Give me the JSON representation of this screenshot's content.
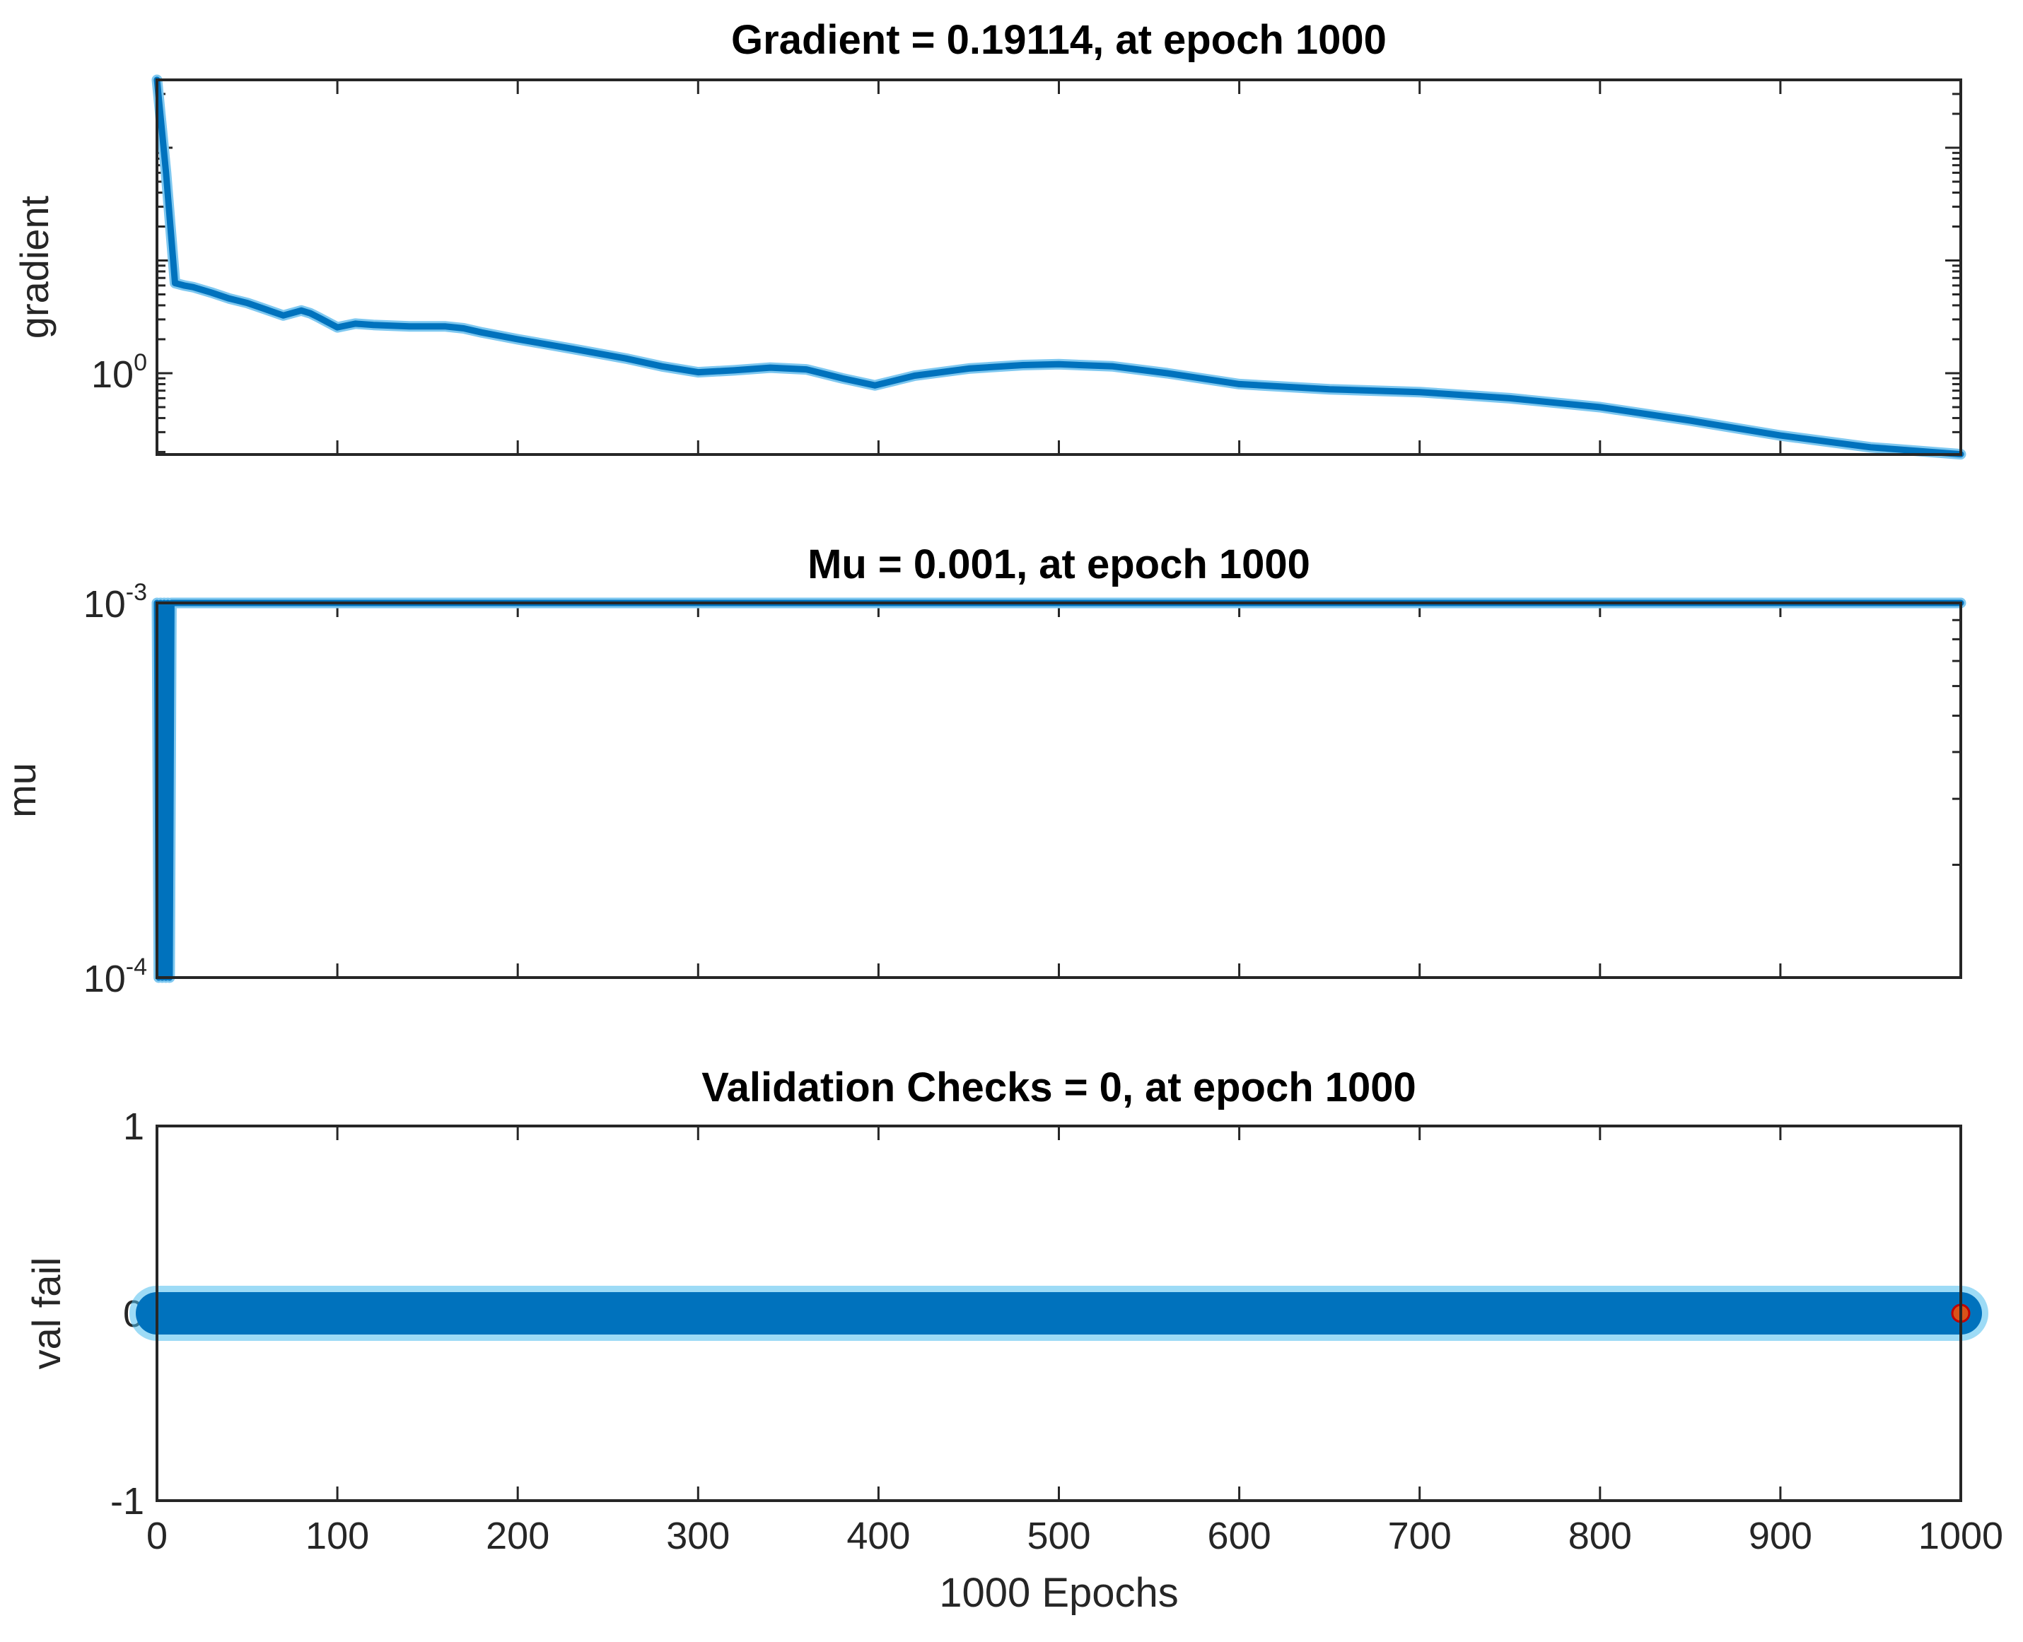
{
  "chart_data": [
    {
      "type": "line",
      "title": "Gradient = 0.19114, at epoch 1000",
      "xlabel": "",
      "ylabel": "gradient",
      "yscale": "log",
      "xlim": [
        0,
        1000
      ],
      "ylim": [
        0.19,
        400
      ],
      "yticks": [
        {
          "value": 1,
          "base": "10",
          "exp": "0"
        }
      ],
      "series": [
        {
          "name": "gradient",
          "color": "#0072BD",
          "x": [
            0,
            5,
            10,
            15,
            20,
            30,
            40,
            50,
            60,
            70,
            80,
            85,
            90,
            100,
            110,
            120,
            140,
            160,
            170,
            180,
            200,
            230,
            260,
            280,
            300,
            320,
            340,
            360,
            380,
            398,
            420,
            450,
            480,
            500,
            530,
            560,
            600,
            650,
            700,
            750,
            800,
            850,
            900,
            950,
            1000
          ],
          "y": [
            400,
            60,
            6.3,
            6.0,
            5.8,
            5.2,
            4.6,
            4.2,
            3.7,
            3.25,
            3.6,
            3.4,
            3.1,
            2.55,
            2.75,
            2.68,
            2.6,
            2.6,
            2.5,
            2.3,
            2.0,
            1.65,
            1.35,
            1.15,
            1.02,
            1.06,
            1.12,
            1.08,
            0.9,
            0.78,
            0.95,
            1.1,
            1.18,
            1.2,
            1.15,
            1.0,
            0.8,
            0.72,
            0.68,
            0.6,
            0.5,
            0.38,
            0.28,
            0.22,
            0.19114
          ]
        }
      ]
    },
    {
      "type": "line",
      "title": "Mu = 0.001, at epoch 1000",
      "xlabel": "",
      "ylabel": "mu",
      "yscale": "log",
      "xlim": [
        0,
        1000
      ],
      "ylim": [
        0.0001,
        0.001
      ],
      "yticks": [
        {
          "value": 0.001,
          "base": "10",
          "exp": "-3"
        },
        {
          "value": 0.0001,
          "base": "10",
          "exp": "-4"
        }
      ],
      "series": [
        {
          "name": "mu",
          "color": "#0072BD",
          "x": [
            0,
            1,
            2,
            3,
            4,
            5,
            6,
            7,
            8,
            10,
            1000
          ],
          "y": [
            0.001,
            0.0001,
            0.001,
            0.0001,
            0.001,
            0.0001,
            0.001,
            0.0001,
            0.001,
            0.001,
            0.001
          ]
        }
      ]
    },
    {
      "type": "line",
      "title": "Validation Checks = 0, at epoch 1000",
      "xlabel": "1000 Epochs",
      "ylabel": "val fail",
      "yscale": "linear",
      "xlim": [
        0,
        1000
      ],
      "ylim": [
        -1,
        1
      ],
      "yticks": [
        {
          "value": 1,
          "label": "1"
        },
        {
          "value": 0,
          "label": "0"
        },
        {
          "value": -1,
          "label": "-1"
        }
      ],
      "xticks": [
        "0",
        "100",
        "200",
        "300",
        "400",
        "500",
        "600",
        "700",
        "800",
        "900",
        "1000"
      ],
      "series": [
        {
          "name": "val fail",
          "color": "#0072BD",
          "x": [
            0,
            1000
          ],
          "y": [
            0,
            0
          ]
        }
      ],
      "highlight": {
        "x": 1000,
        "y": 0,
        "color": "#D95319"
      }
    }
  ]
}
